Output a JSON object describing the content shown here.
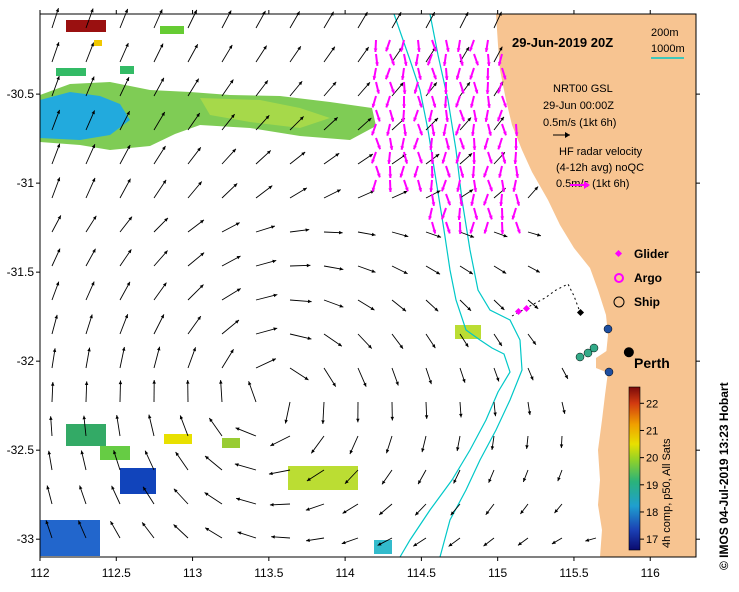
{
  "title": "29-Jun-2019 20Z",
  "isobaths": {
    "label_200": "200m",
    "label_1000": "1000m",
    "color_200": "#00c8c8",
    "color_1000": "#00c8c8"
  },
  "model_legend": {
    "line1": "NRT00 GSL",
    "line2": "29-Jun 00:00Z",
    "line3": "0.5m/s (1kt 6h)",
    "arrow_color": "#000000"
  },
  "radar_legend": {
    "line1": "HF radar velocity",
    "line2": "(4-12h avg) noQC",
    "line3": "0.5m/s (1kt 6h)",
    "arrow_color": "#ff00ff"
  },
  "platforms": [
    {
      "label": "Glider",
      "symbol": "diamond",
      "color": "#ff00ff"
    },
    {
      "label": "Argo",
      "symbol": "ring",
      "color": "#ff00ff"
    },
    {
      "label": "Ship",
      "symbol": "circle",
      "color": "#000000"
    }
  ],
  "city": {
    "label": "Perth",
    "lon": 115.86,
    "lat": -31.95
  },
  "colorbar": {
    "ticks": [
      "22",
      "21",
      "20",
      "19",
      "18",
      "17"
    ],
    "label": "4h comp, p50, All Sats",
    "vmin": 16.6,
    "vmax": 22.6
  },
  "credit": "© IMOS 04-Jul-2019 13:23 Hobart",
  "axes": {
    "x_ticks": [
      "112",
      "112.5",
      "113",
      "113.5",
      "114",
      "114.5",
      "115",
      "115.5",
      "116"
    ],
    "y_ticks": [
      "-30.5",
      "-31",
      "-31.5",
      "-32",
      "-32.5",
      "-33"
    ],
    "lon_range": [
      112,
      116.3
    ],
    "lat_range": [
      -33.1,
      -30.05
    ]
  },
  "colors": {
    "land": "#f7c491",
    "sea": "#ffffff",
    "radar": "#ff00ff",
    "model_arrows": "#000000"
  }
}
